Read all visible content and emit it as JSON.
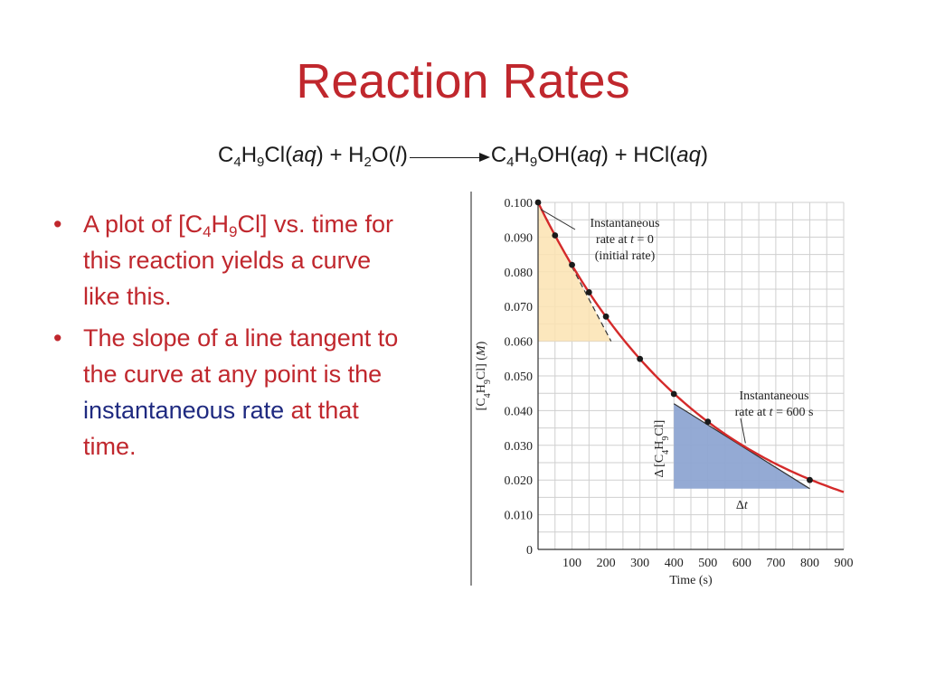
{
  "colors": {
    "title": "#c0272d",
    "bullet_text": "#c0272d",
    "highlight": "#1f2a80",
    "curve": "#d42a2a",
    "triangle_initial": "#fbe3b1",
    "triangle_600": "#8ea5d2"
  },
  "slide": {
    "title": "Reaction Rates",
    "equation": {
      "r1": {
        "a": "C",
        "b": "4",
        "c": "H",
        "d": "9",
        "e": "Cl",
        "state": "aq"
      },
      "plus1": "+",
      "r2": {
        "a": "H",
        "b": "2",
        "c": "O",
        "state": "l"
      },
      "p1": {
        "a": "C",
        "b": "4",
        "c": "H",
        "d": "9",
        "e": "OH",
        "state": "aq"
      },
      "plus2": "+",
      "p2": {
        "a": "HCl",
        "state": "aq"
      }
    },
    "bullets": [
      {
        "t1": "A plot of [C",
        "s1": "4",
        "t2": "H",
        "s2": "9",
        "t3": "Cl] vs. time for this reaction yields a curve like this."
      },
      {
        "t1": "The slope of a line tangent to the curve at any point is the ",
        "highlight": "instantaneous rate",
        "t2": " at that time."
      }
    ]
  },
  "chart_data": {
    "type": "line",
    "ylabel": "[C4H9Cl] (M)",
    "xlabel": "Time (s)",
    "xlim": [
      0,
      900
    ],
    "ylim": [
      0,
      0.1
    ],
    "x_ticks": [
      100,
      200,
      300,
      400,
      500,
      600,
      700,
      800,
      900
    ],
    "y_ticks": [
      "0",
      "0.010",
      "0.020",
      "0.030",
      "0.040",
      "0.050",
      "0.060",
      "0.070",
      "0.080",
      "0.090",
      "0.100"
    ],
    "grid": true,
    "points": [
      {
        "x": 0,
        "y": 0.1
      },
      {
        "x": 50,
        "y": 0.0905
      },
      {
        "x": 100,
        "y": 0.082
      },
      {
        "x": 150,
        "y": 0.0741
      },
      {
        "x": 200,
        "y": 0.0671
      },
      {
        "x": 300,
        "y": 0.0549
      },
      {
        "x": 400,
        "y": 0.0448
      },
      {
        "x": 500,
        "y": 0.0368
      },
      {
        "x": 800,
        "y": 0.02
      }
    ],
    "curve": {
      "form": "exponential decay",
      "y0": 0.1,
      "k": 0.002
    },
    "tangent_initial": {
      "from": {
        "x": 0,
        "y": 0.1
      },
      "to": {
        "x": 215,
        "y": 0.06
      },
      "triangle": [
        {
          "x": 0,
          "y": 0.1
        },
        {
          "x": 0,
          "y": 0.06
        },
        {
          "x": 215,
          "y": 0.06
        }
      ]
    },
    "tangent_600": {
      "from": {
        "x": 400,
        "y": 0.042
      },
      "to": {
        "x": 800,
        "y": 0.0175
      },
      "triangle": [
        {
          "x": 400,
          "y": 0.042
        },
        {
          "x": 400,
          "y": 0.0175
        },
        {
          "x": 800,
          "y": 0.0175
        }
      ]
    },
    "annotations": {
      "initial": {
        "line1": "Instantaneous",
        "line2a": "rate at ",
        "line2b": "t",
        "line2c": " = 0",
        "line3": "(initial rate)"
      },
      "at600": {
        "line1": "Instantaneous",
        "line2a": "rate at ",
        "line2b": "t",
        "line2c": " = 600 s"
      },
      "delta_conc": {
        "a": "Δ [C",
        "b": "4",
        "c": "H",
        "d": "9",
        "e": "Cl]"
      },
      "delta_t": {
        "a": "Δ",
        "b": "t"
      },
      "ylabel": {
        "a": "[C",
        "b": "4",
        "c": "H",
        "d": "9",
        "e": "Cl] (",
        "f": "M",
        "g": ")"
      }
    }
  }
}
